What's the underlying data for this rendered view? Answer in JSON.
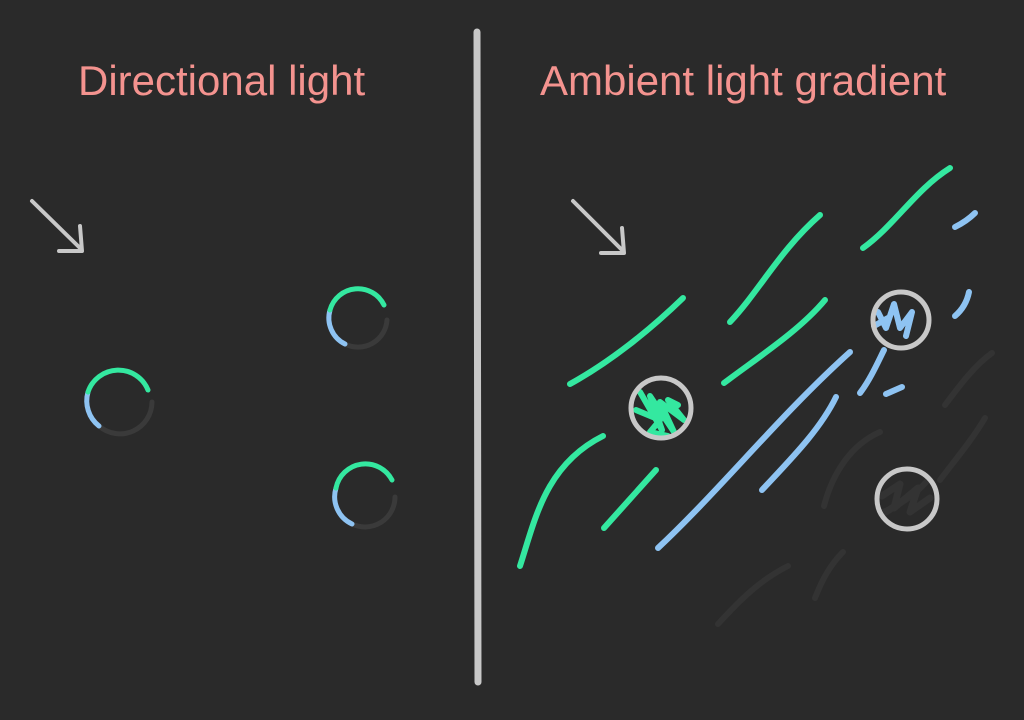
{
  "titles": {
    "left": "Directional light",
    "right": "Ambient light gradient"
  },
  "colors": {
    "background": "#2a2a2a",
    "title": "#f4938f",
    "divider": "#c8c8c8",
    "arrow": "#c8c8c8",
    "lit": "#34e8a0",
    "mid": "#8ec3f2",
    "shadow": "#3a3a3a",
    "ring": "#c8c8c8",
    "scribble_dark": "#333333"
  },
  "icons": {
    "light_direction": "arrow-down-right-icon"
  }
}
